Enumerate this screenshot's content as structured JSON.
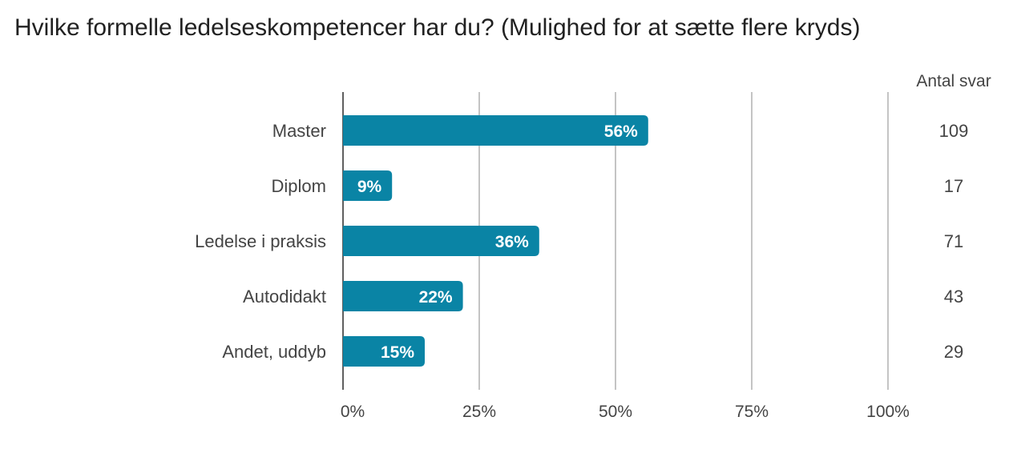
{
  "chart_data": {
    "type": "bar",
    "orientation": "horizontal",
    "title": "Hvilke formelle ledelseskompetencer har du? (Mulighed for at sætte flere kryds)",
    "categories": [
      "Master",
      "Diplom",
      "Ledelse i praksis",
      "Autodidakt",
      "Andet, uddyb"
    ],
    "values": [
      56,
      9,
      36,
      22,
      15
    ],
    "value_labels": [
      "56%",
      "9%",
      "36%",
      "22%",
      "15%"
    ],
    "counts_header": "Antal svar",
    "counts": [
      "109",
      "17",
      "71",
      "43",
      "29"
    ],
    "xticks": [
      0,
      25,
      50,
      75,
      100
    ],
    "xtick_labels": [
      "0%",
      "25%",
      "50%",
      "75%",
      "100%"
    ],
    "xlim": [
      0,
      100
    ],
    "grid": true,
    "bar_color": "#0a84a5"
  }
}
